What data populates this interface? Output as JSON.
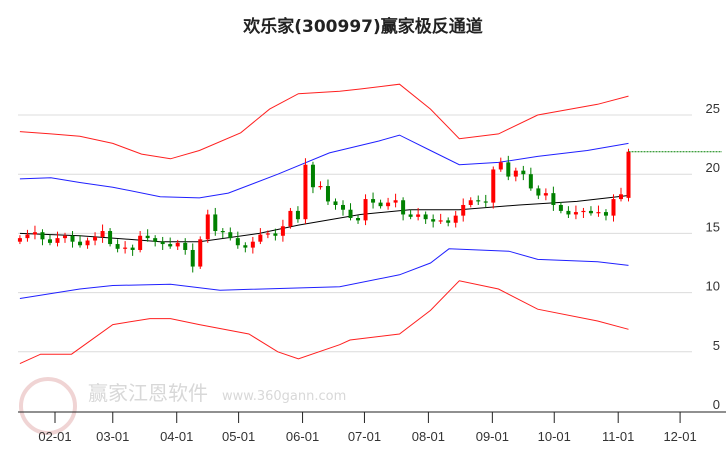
{
  "chart_data": {
    "type": "candlestick",
    "title": "欢乐家(300997)赢家极反通道",
    "xlabel": "",
    "ylabel": "",
    "ylim": [
      0,
      28
    ],
    "yticks": [
      0,
      5,
      10,
      15,
      20,
      25
    ],
    "grid": true,
    "x_unit": "day-of-year",
    "xlim": [
      6,
      345
    ],
    "xticks": [
      {
        "label": "02-01",
        "day": 32
      },
      {
        "label": "03-01",
        "day": 60
      },
      {
        "label": "04-01",
        "day": 91
      },
      {
        "label": "05-01",
        "day": 121
      },
      {
        "label": "06-01",
        "day": 152
      },
      {
        "label": "07-01",
        "day": 182
      },
      {
        "label": "08-01",
        "day": 213
      },
      {
        "label": "09-01",
        "day": 244
      },
      {
        "label": "10-01",
        "day": 274
      },
      {
        "label": "11-01",
        "day": 305
      },
      {
        "label": "12-01",
        "day": 335
      }
    ],
    "candles": {
      "start_day": 15,
      "end_day": 310,
      "first_open": 14.3,
      "up_color": "#ff0000",
      "down_color": "#008000",
      "closes": [
        14.6,
        14.9,
        15.1,
        14.5,
        14.2,
        14.6,
        14.8,
        14.3,
        14.0,
        14.4,
        14.7,
        15.2,
        14.1,
        13.7,
        13.8,
        13.6,
        14.8,
        14.6,
        14.3,
        14.1,
        13.9,
        14.2,
        13.6,
        12.2,
        14.5,
        16.6,
        15.2,
        15.1,
        14.6,
        14.0,
        13.8,
        14.3,
        14.9,
        15.0,
        14.8,
        15.6,
        16.9,
        16.2,
        20.8,
        18.9,
        19.0,
        17.7,
        17.4,
        17.0,
        16.3,
        16.1,
        17.9,
        17.6,
        17.3,
        17.6,
        17.8,
        16.6,
        16.4,
        16.6,
        16.2,
        16.0,
        16.1,
        15.9,
        16.5,
        17.4,
        17.8,
        17.7,
        17.6,
        20.4,
        21.0,
        19.8,
        20.3,
        20.0,
        18.8,
        18.2,
        18.4,
        17.4,
        16.9,
        16.6,
        16.8,
        16.9,
        16.7,
        16.8,
        16.5,
        17.9,
        18.3,
        21.9
      ],
      "last_open": 18.0
    },
    "series": [
      {
        "name": "outer-upper",
        "color": "#ff2020",
        "points": [
          [
            15,
            23.6
          ],
          [
            30,
            23.4
          ],
          [
            44,
            23.2
          ],
          [
            60,
            22.6
          ],
          [
            74,
            21.7
          ],
          [
            88,
            21.3
          ],
          [
            102,
            22.0
          ],
          [
            122,
            23.5
          ],
          [
            136,
            25.5
          ],
          [
            150,
            26.8
          ],
          [
            170,
            27.0
          ],
          [
            180,
            27.2
          ],
          [
            199,
            27.6
          ],
          [
            214,
            25.5
          ],
          [
            228,
            23.0
          ],
          [
            247,
            23.4
          ],
          [
            266,
            25.0
          ],
          [
            295,
            25.9
          ],
          [
            310,
            26.6
          ]
        ]
      },
      {
        "name": "inner-upper",
        "color": "#2020ff",
        "points": [
          [
            15,
            19.6
          ],
          [
            30,
            19.7
          ],
          [
            44,
            19.3
          ],
          [
            60,
            18.9
          ],
          [
            83,
            18.1
          ],
          [
            102,
            18.0
          ],
          [
            116,
            18.4
          ],
          [
            140,
            20.0
          ],
          [
            165,
            21.8
          ],
          [
            189,
            22.8
          ],
          [
            199,
            23.3
          ],
          [
            214,
            22.0
          ],
          [
            228,
            20.8
          ],
          [
            247,
            21.0
          ],
          [
            266,
            21.5
          ],
          [
            290,
            22.0
          ],
          [
            310,
            22.6
          ]
        ]
      },
      {
        "name": "middle",
        "color": "#000000",
        "points": [
          [
            15,
            15.0
          ],
          [
            44,
            14.8
          ],
          [
            60,
            14.6
          ],
          [
            83,
            14.3
          ],
          [
            102,
            14.3
          ],
          [
            131,
            15.0
          ],
          [
            150,
            15.7
          ],
          [
            180,
            16.6
          ],
          [
            204,
            17.0
          ],
          [
            228,
            17.0
          ],
          [
            257,
            17.4
          ],
          [
            285,
            17.7
          ],
          [
            310,
            18.2
          ]
        ]
      },
      {
        "name": "inner-lower",
        "color": "#2020ff",
        "points": [
          [
            15,
            9.5
          ],
          [
            44,
            10.3
          ],
          [
            60,
            10.6
          ],
          [
            88,
            10.7
          ],
          [
            112,
            10.2
          ],
          [
            170,
            10.5
          ],
          [
            199,
            11.5
          ],
          [
            214,
            12.5
          ],
          [
            223,
            13.7
          ],
          [
            252,
            13.5
          ],
          [
            266,
            12.8
          ],
          [
            295,
            12.6
          ],
          [
            310,
            12.3
          ]
        ]
      },
      {
        "name": "outer-lower",
        "color": "#ff2020",
        "points": [
          [
            15,
            4.0
          ],
          [
            25,
            4.8
          ],
          [
            40,
            4.8
          ],
          [
            60,
            7.3
          ],
          [
            78,
            7.8
          ],
          [
            88,
            7.8
          ],
          [
            102,
            7.3
          ],
          [
            126,
            6.5
          ],
          [
            140,
            5.0
          ],
          [
            150,
            4.4
          ],
          [
            170,
            5.6
          ],
          [
            175,
            6.0
          ],
          [
            199,
            6.5
          ],
          [
            214,
            8.5
          ],
          [
            228,
            11.0
          ],
          [
            247,
            10.3
          ],
          [
            266,
            8.6
          ],
          [
            295,
            7.6
          ],
          [
            310,
            6.9
          ]
        ]
      }
    ],
    "last_price_line": {
      "value": 21.9,
      "color": "#008000",
      "style": "dashed"
    }
  },
  "watermark": {
    "logo_text": "江赢恩家",
    "brand": "赢家江恩软件",
    "url": "www.360gann.com"
  }
}
